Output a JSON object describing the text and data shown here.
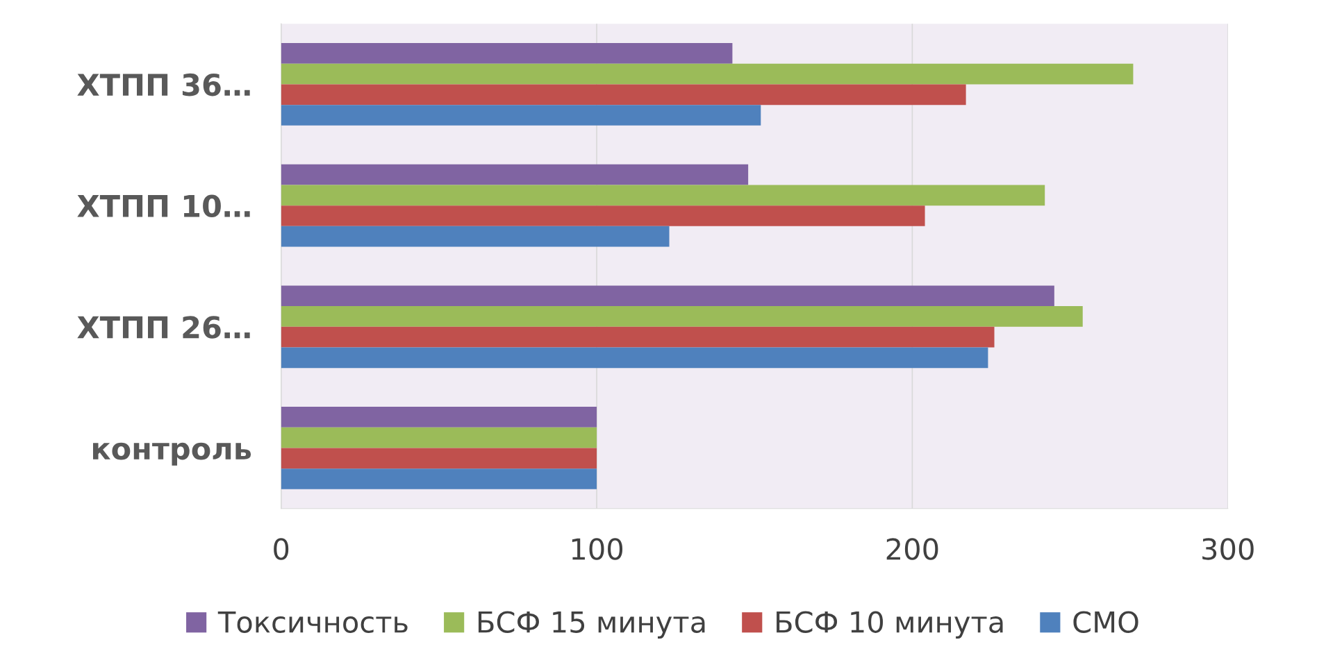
{
  "chart_data": {
    "type": "bar",
    "orientation": "horizontal",
    "categories": [
      "ХТПП 36…",
      "ХТПП 10…",
      "ХТПП 26…",
      "контроль"
    ],
    "series": [
      {
        "name": "Токсичность",
        "color": "#8064a2",
        "values": [
          143,
          148,
          245,
          100
        ]
      },
      {
        "name": "БСФ 15 минута",
        "color": "#9bbb59",
        "values": [
          270,
          242,
          254,
          100
        ]
      },
      {
        "name": "БСФ 10 минута",
        "color": "#c0504d",
        "values": [
          217,
          204,
          226,
          100
        ]
      },
      {
        "name": "СМО",
        "color": "#4f81bd",
        "values": [
          152,
          123,
          224,
          100
        ]
      }
    ],
    "xlim": [
      0,
      300
    ],
    "xticks": [
      0,
      100,
      200,
      300
    ],
    "grid": "x",
    "legend": "bottom"
  }
}
